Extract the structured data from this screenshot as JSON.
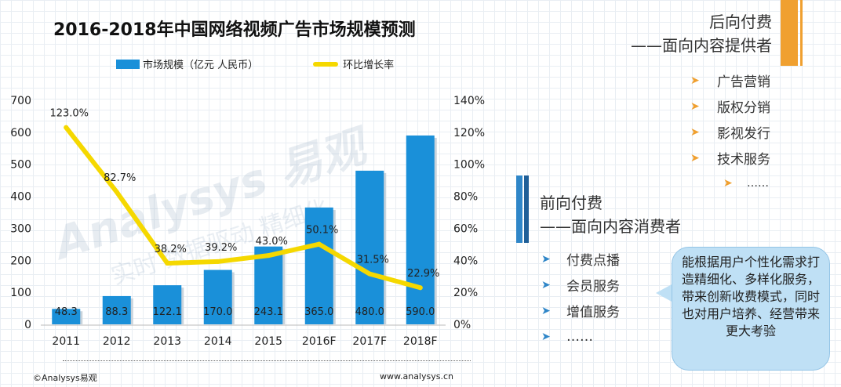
{
  "chart_data": {
    "type": "bar",
    "title": "2016-2018年中国网络视频广告市场规模预测",
    "categories": [
      "2011",
      "2012",
      "2013",
      "2014",
      "2015",
      "2016F",
      "2017F",
      "2018F"
    ],
    "series": [
      {
        "name": "市场规模（亿元 人民币）",
        "type": "bar",
        "axis": "left",
        "color": "#1a90d9",
        "values": [
          48.3,
          88.3,
          122.1,
          170.0,
          243.1,
          365.0,
          480.0,
          590.0
        ],
        "labels": [
          "48.3",
          "88.3",
          "122.1",
          "170.0",
          "243.1",
          "365.0",
          "480.0",
          "590.0"
        ]
      },
      {
        "name": "环比增长率",
        "type": "line",
        "axis": "right",
        "color": "#f5d800",
        "values": [
          123.0,
          82.7,
          38.2,
          39.2,
          43.0,
          50.1,
          31.5,
          22.9
        ],
        "labels": [
          "123.0%",
          "82.7%",
          "38.2%",
          "39.2%",
          "43.0%",
          "50.1%",
          "31.5%",
          "22.9%"
        ]
      }
    ],
    "ylim_left": [
      0,
      700
    ],
    "yticks_left": [
      "0",
      "100",
      "200",
      "300",
      "400",
      "500",
      "600",
      "700"
    ],
    "ylim_right": [
      0,
      140
    ],
    "yticks_right": [
      "0%",
      "20%",
      "40%",
      "60%",
      "80%",
      "100%",
      "120%",
      "140%"
    ],
    "legend_position": "top"
  },
  "watermark": {
    "brand": "Analysys 易观",
    "tagline": "实时 数据驱动 精细化"
  },
  "footer": {
    "left": "©Analysys易观",
    "right": "www.analysys.cn"
  },
  "back_paid": {
    "title": "后向付费",
    "subtitle": "——面向内容提供者",
    "items": [
      "广告营销",
      "版权分销",
      "影视发行",
      "技术服务"
    ],
    "more": "……"
  },
  "front_paid": {
    "title": "前向付费",
    "subtitle": "——面向内容消费者",
    "items": [
      "付费点播",
      "会员服务",
      "增值服务"
    ],
    "more": "……"
  },
  "callout": "能根据用户个性化需求打造精细化、多样化服务，带来创新收费模式，同时也对用户培养、经营带来更大考验",
  "colors": {
    "bar": "#1a90d9",
    "line": "#f5d800",
    "orange": "#f0a030",
    "blue": "#2f86c8"
  }
}
